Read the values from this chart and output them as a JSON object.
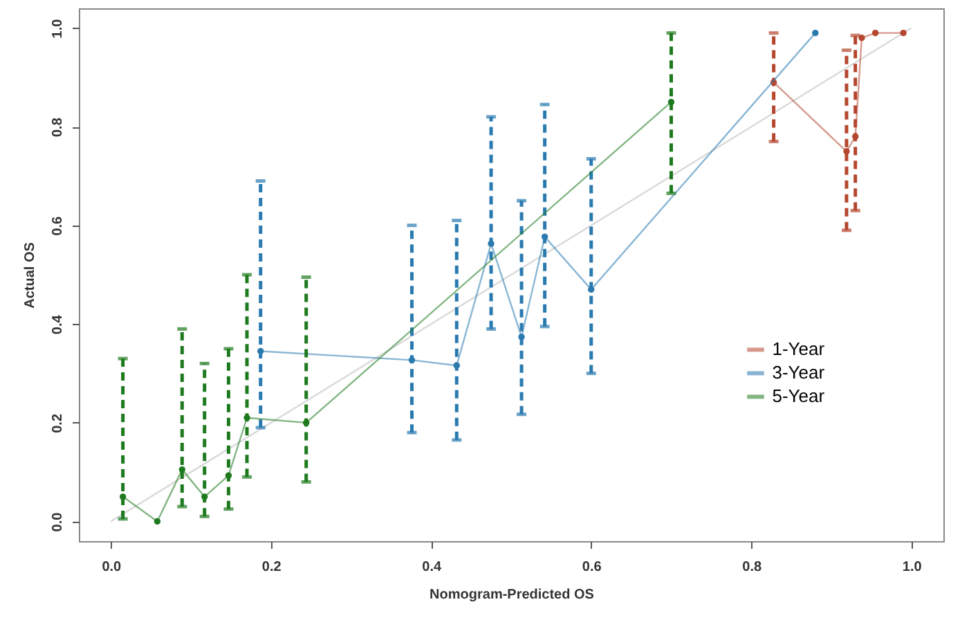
{
  "chart_data": {
    "type": "line",
    "xlabel": "Nomogram-Predicted OS",
    "ylabel": "Actual OS",
    "xlim": [
      -0.04,
      1.04
    ],
    "ylim": [
      -0.04,
      1.04
    ],
    "xticks": [
      {
        "value": 0,
        "label": "0.0"
      },
      {
        "value": 0.2,
        "label": "0.2"
      },
      {
        "value": 0.4,
        "label": "0.4"
      },
      {
        "value": 0.6,
        "label": "0.6"
      },
      {
        "value": 0.8,
        "label": "0.8"
      },
      {
        "value": 1,
        "label": "1.0"
      }
    ],
    "yticks": [
      {
        "value": 0,
        "label": "0.0"
      },
      {
        "value": 0.2,
        "label": "0.2"
      },
      {
        "value": 0.4,
        "label": "0.4"
      },
      {
        "value": 0.6,
        "label": "0.6"
      },
      {
        "value": 0.8,
        "label": "0.8"
      },
      {
        "value": 1,
        "label": "1.0"
      }
    ],
    "grid": false,
    "legend": "right",
    "marker": "circle",
    "line_style": "solid",
    "series": [
      {
        "color": "#d9d9d9",
        "x": [
          0,
          1
        ],
        "values": [
          0,
          1
        ],
        "marker": "none"
      },
      {
        "name": "1-Year",
        "color": "#b5472f",
        "x": [
          0.828,
          0.919,
          0.93,
          0.938,
          0.955,
          0.99
        ],
        "values": [
          0.89,
          0.75,
          0.78,
          0.98,
          0.99,
          0.99
        ],
        "errors": [
          [
            0.77,
            0.99
          ],
          [
            0.59,
            0.955
          ],
          [
            0.63,
            0.985
          ],
          null,
          null,
          null
        ]
      },
      {
        "name": "3-Year",
        "color": "#2a7ab0",
        "x": [
          0.187,
          0.376,
          0.432,
          0.475,
          0.513,
          0.542,
          0.6,
          0.88
        ],
        "values": [
          0.345,
          0.327,
          0.316,
          0.563,
          0.374,
          0.577,
          0.47,
          0.99
        ],
        "errors": [
          [
            0.19,
            0.69
          ],
          [
            0.18,
            0.6
          ],
          [
            0.165,
            0.61
          ],
          [
            0.39,
            0.82
          ],
          [
            0.217,
            0.65
          ],
          [
            0.395,
            0.845
          ],
          [
            0.3,
            0.735
          ],
          null
        ]
      },
      {
        "name": "5-Year",
        "color": "#1e7a1e",
        "x": [
          0.015,
          0.058,
          0.089,
          0.117,
          0.147,
          0.17,
          0.244,
          0.7
        ],
        "values": [
          0.05,
          0.0,
          0.105,
          0.05,
          0.093,
          0.21,
          0.2,
          0.85
        ],
        "errors": [
          [
            0.005,
            0.33
          ],
          null,
          [
            0.03,
            0.39
          ],
          [
            0.01,
            0.32
          ],
          [
            0.025,
            0.35
          ],
          [
            0.09,
            0.5
          ],
          [
            0.08,
            0.495
          ],
          [
            0.665,
            0.99
          ]
        ]
      }
    ]
  }
}
